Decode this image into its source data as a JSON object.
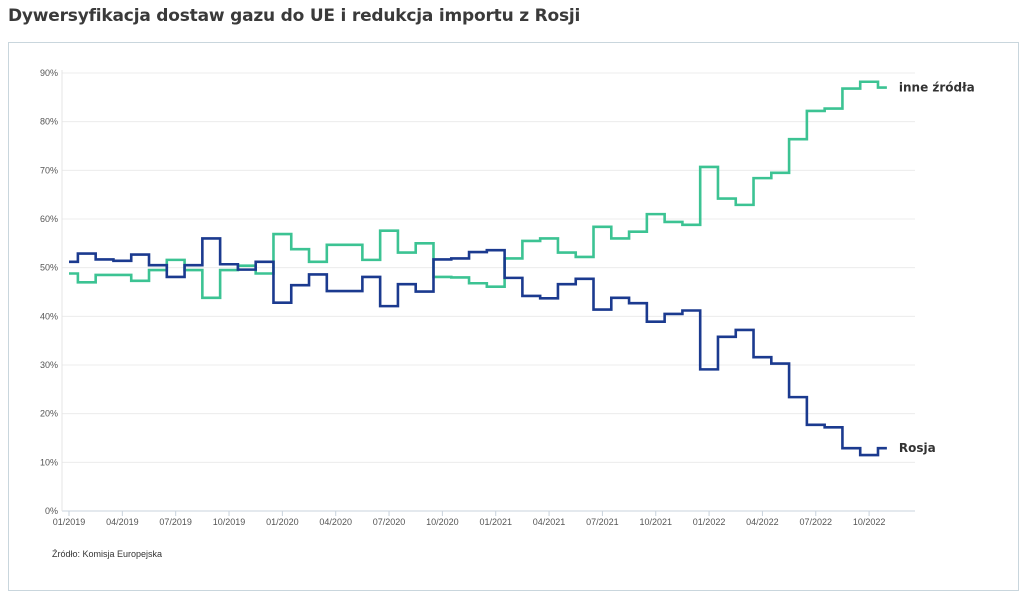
{
  "title": "Dywersyfikacja dostaw gazu do UE i redukcja importu z Rosji",
  "source": "Źródło: Komisja Europejska",
  "chart_data": {
    "type": "line",
    "step": "middle",
    "title": "Dywersyfikacja dostaw gazu do UE i redukcja importu z Rosji",
    "ylim": [
      0,
      90
    ],
    "yticks": [
      "0%",
      "10%",
      "20%",
      "30%",
      "40%",
      "50%",
      "60%",
      "70%",
      "80%",
      "90%"
    ],
    "xticks": [
      "01/2019",
      "04/2019",
      "07/2019",
      "10/2019",
      "01/2020",
      "04/2020",
      "07/2020",
      "10/2020",
      "01/2021",
      "04/2021",
      "07/2021",
      "10/2021",
      "01/2022",
      "04/2022",
      "07/2022",
      "10/2022"
    ],
    "x_start": "01/2019",
    "x_end": "11/2022",
    "grid": true,
    "colors": {
      "Rosja": "#1b3a8f",
      "inne źródła": "#3cc393"
    },
    "series": [
      {
        "name": "inne źródła",
        "values": [
          48.8,
          47.0,
          48.5,
          48.5,
          47.3,
          49.5,
          51.6,
          49.5,
          43.8,
          49.5,
          50.4,
          48.8,
          56.9,
          53.8,
          51.2,
          54.7,
          54.7,
          51.6,
          57.6,
          53.1,
          55.0,
          48.1,
          48.0,
          46.8,
          46.1,
          51.9,
          55.5,
          56.0,
          53.1,
          52.2,
          58.4,
          56.0,
          57.4,
          61.0,
          59.4,
          58.8,
          70.7,
          64.2,
          62.9,
          68.4,
          69.5,
          76.4,
          82.2,
          82.7,
          86.8,
          88.2,
          87.0
        ]
      },
      {
        "name": "Rosja",
        "values": [
          51.2,
          52.9,
          51.7,
          51.4,
          52.7,
          50.5,
          48.1,
          50.5,
          56.0,
          50.7,
          49.6,
          51.2,
          42.8,
          46.4,
          48.6,
          45.2,
          45.2,
          48.1,
          42.1,
          46.6,
          45.1,
          51.7,
          51.9,
          53.2,
          53.6,
          47.9,
          44.2,
          43.7,
          46.6,
          47.7,
          41.4,
          43.8,
          42.7,
          38.9,
          40.5,
          41.2,
          29.1,
          35.8,
          37.2,
          31.6,
          30.3,
          23.4,
          17.7,
          17.2,
          12.9,
          11.5,
          12.9
        ]
      }
    ]
  }
}
